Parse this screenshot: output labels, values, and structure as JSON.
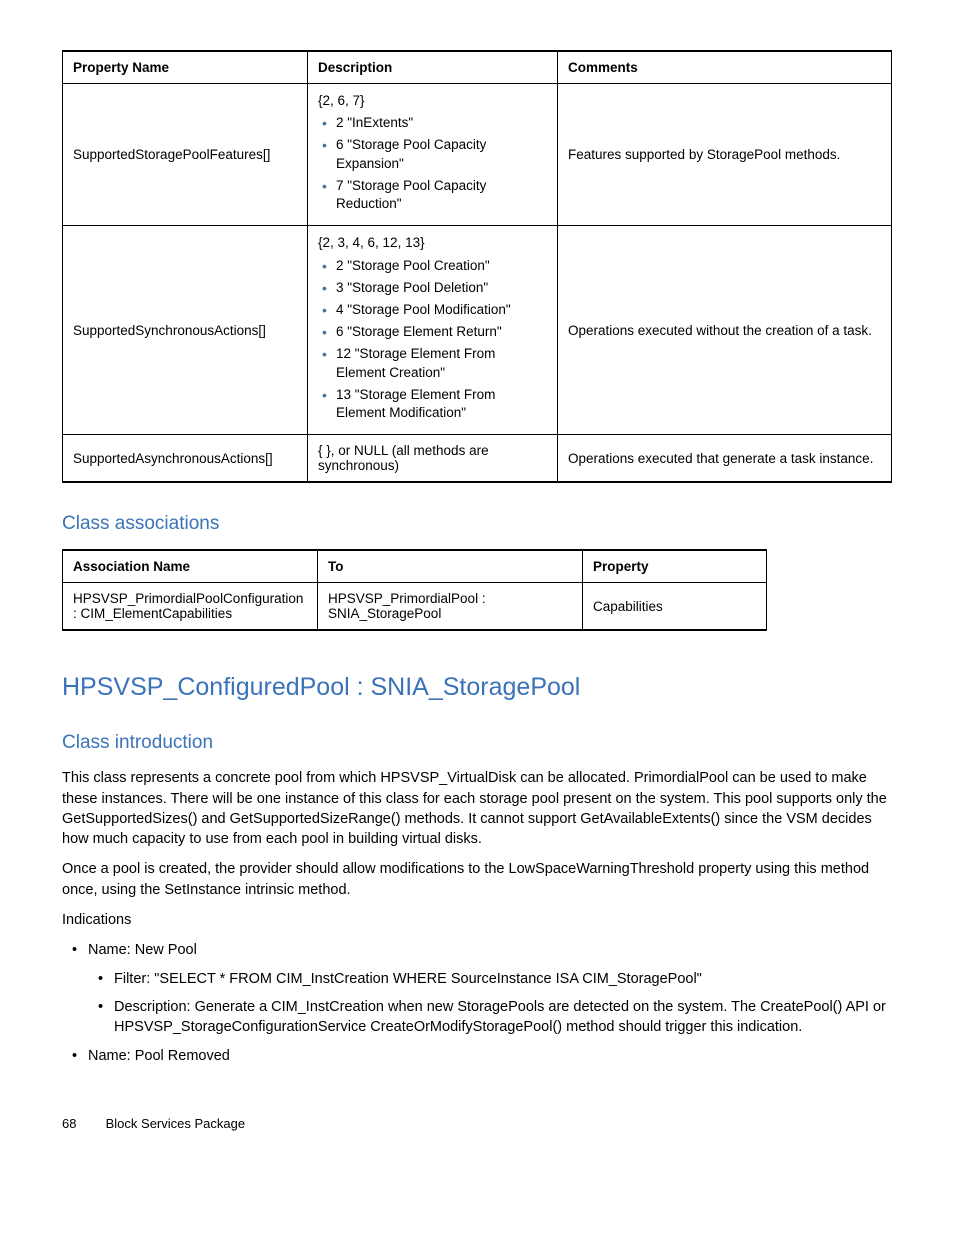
{
  "table1": {
    "headers": [
      "Property Name",
      "Description",
      "Comments"
    ],
    "rows": [
      {
        "prop": "SupportedStoragePoolFeatures[]",
        "desc_prefix": "{2, 6, 7}",
        "desc_items": [
          "2 \"InExtents\"",
          "6 \"Storage Pool Capacity Expansion\"",
          "7 \"Storage Pool Capacity Reduction\""
        ],
        "comm": "Features supported by StoragePool methods."
      },
      {
        "prop": "SupportedSynchronousActions[]",
        "desc_prefix": "{2, 3, 4, 6, 12, 13}",
        "desc_items": [
          "2 \"Storage Pool Creation\"",
          "3 \"Storage Pool Deletion\"",
          "4 \"Storage Pool Modification\"",
          "6 \"Storage Element Return\"",
          "12 \"Storage Element From Element Creation\"",
          "13 \"Storage Element From Element Modification\""
        ],
        "comm": "Operations executed without the creation of a task."
      },
      {
        "prop": "SupportedAsynchronousActions[]",
        "desc_plain": "{ }, or NULL (all methods are synchronous)",
        "comm": "Operations executed that generate a task instance."
      }
    ]
  },
  "sec_assoc_title": "Class associations",
  "table2": {
    "headers": [
      "Association Name",
      "To",
      "Property"
    ],
    "rows": [
      {
        "a": "HPSVSP_PrimordialPoolConfiguration : CIM_ElementCapabilities",
        "b": "HPSVSP_PrimordialPool : SNIA_StoragePool",
        "c": "Capabilities"
      }
    ]
  },
  "h1_title": "HPSVSP_ConfiguredPool : SNIA_StoragePool",
  "sec_intro_title": "Class introduction",
  "intro_p1": "This class represents a concrete pool from which HPSVSP_VirtualDisk can be allocated. PrimordialPool can be used to make these instances. There will be one instance of this class for each storage pool present on the system. This pool supports only the GetSupportedSizes() and GetSupportedSizeRange() methods. It cannot support GetAvailableExtents() since the VSM decides how much capacity to use from each pool in building virtual disks.",
  "intro_p2": "Once a pool is created, the provider should allow modifications to the LowSpaceWarningThreshold property using this method once, using the SetInstance intrinsic method.",
  "intro_p3": "Indications",
  "ind_list": [
    {
      "name": "Name: New Pool",
      "sub": [
        "Filter: \"SELECT * FROM CIM_InstCreation WHERE SourceInstance ISA CIM_StoragePool\"",
        "Description: Generate a CIM_InstCreation when new StoragePools are detected on the system. The CreatePool() API or HPSVSP_StorageConfigurationService CreateOrModifyStoragePool() method should trigger this indication."
      ]
    },
    {
      "name": "Name: Pool Removed",
      "sub": []
    }
  ],
  "footer": {
    "page": "68",
    "title": "Block Services Package"
  },
  "colors": {
    "heading_blue": "#3b73b9",
    "bullet_blue": "#4a6fa5",
    "text": "#000000",
    "bg": "#ffffff"
  }
}
